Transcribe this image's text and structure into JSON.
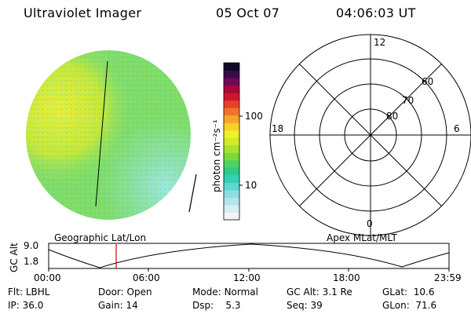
{
  "header": {
    "title": "Ultraviolet Imager",
    "date": "05 Oct 07",
    "time": "04:06:03 UT"
  },
  "colorbar": {
    "label": "photon cm⁻²s⁻¹",
    "ticks": [
      "100",
      "10"
    ],
    "colors": [
      "#f4f4f4",
      "#d8eef2",
      "#b6e4ee",
      "#8fdde3",
      "#5fd7d1",
      "#35d0b4",
      "#2ec98c",
      "#4fd062",
      "#7bda3a",
      "#a8e22e",
      "#d2ea2a",
      "#eef02a",
      "#f7d02a",
      "#f7a42a",
      "#f0742a",
      "#e8402a",
      "#d2142e",
      "#a5083a",
      "#6e0a55",
      "#3a0a4a",
      "#120a22"
    ]
  },
  "image": {
    "left_label": "Geographic Lat/Lon",
    "right_label": "Apex MLat/MLT",
    "colors": {
      "base": "#7fdc6a",
      "bright": "#e9ee3a",
      "dim": "#8fe0d8"
    }
  },
  "polar": {
    "mlt_labels": [
      "12",
      "18",
      "6",
      "0"
    ],
    "lat_labels": [
      "60",
      "70",
      "80"
    ]
  },
  "timeline": {
    "ylabel": "GC Alt",
    "yticks": [
      "9.0",
      "1.8"
    ],
    "xticks": [
      "00:00",
      "06:00",
      "12:00",
      "18:00",
      "23:59"
    ],
    "cursor_color": "#d00000"
  },
  "info": {
    "row1": [
      {
        "key": "Flt:",
        "value": "LBHL"
      },
      {
        "key": "Door:",
        "value": "Open"
      },
      {
        "key": "Mode:",
        "value": "Normal"
      },
      {
        "key": "GC Alt:",
        "value": "3.1 Re"
      },
      {
        "key": "GLat:",
        "value": "10.6"
      }
    ],
    "row2": [
      {
        "key": "IP:",
        "value": "36.0"
      },
      {
        "key": "Gain:",
        "value": "14"
      },
      {
        "key": "Dsp:",
        "value": "5.3"
      },
      {
        "key": "Seq:",
        "value": "39"
      },
      {
        "key": "GLon:",
        "value": "71.6"
      }
    ]
  }
}
